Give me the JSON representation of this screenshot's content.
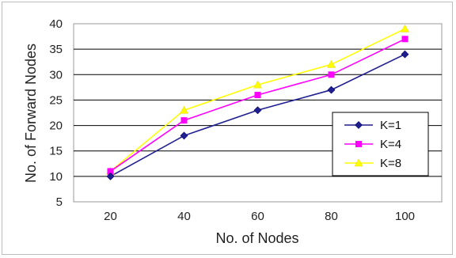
{
  "chart_data": {
    "type": "line",
    "title": "",
    "xlabel": "No. of Nodes",
    "ylabel": "No. of Forward Nodes",
    "categories": [
      "20",
      "40",
      "60",
      "80",
      "100"
    ],
    "x": [
      20,
      40,
      60,
      80,
      100
    ],
    "ylim": [
      5,
      40
    ],
    "yticks": [
      5,
      10,
      15,
      20,
      25,
      30,
      35,
      40
    ],
    "grid": "horizontal",
    "legend": "right",
    "series": [
      {
        "name": "K=1",
        "values": [
          10,
          18,
          23,
          27,
          34
        ],
        "color": "#1f1f8f",
        "marker": "diamond"
      },
      {
        "name": "K=4",
        "values": [
          11,
          21,
          26,
          30,
          37
        ],
        "color": "#ff00ff",
        "marker": "square"
      },
      {
        "name": "K=8",
        "values": [
          11,
          23,
          28,
          32,
          39
        ],
        "color": "#ffff00",
        "marker": "triangle"
      }
    ]
  }
}
